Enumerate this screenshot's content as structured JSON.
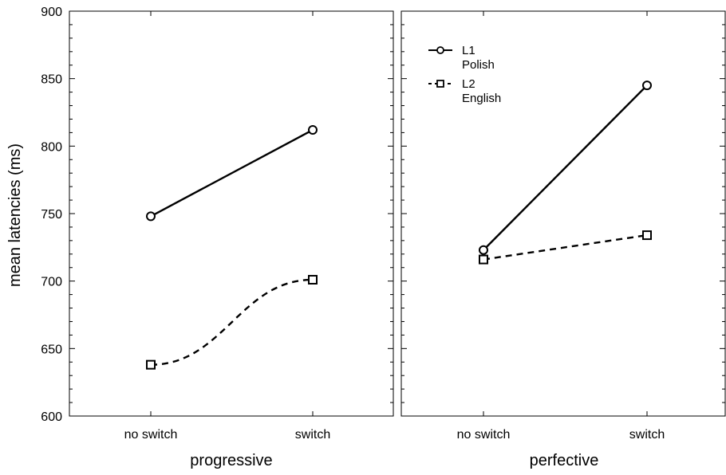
{
  "chart_data": {
    "type": "line",
    "ylabel": "mean latencies (ms)",
    "ylim": [
      600,
      900
    ],
    "yticks": [
      "600",
      "650",
      "700",
      "750",
      "800",
      "850",
      "900"
    ],
    "grid": false,
    "legend_placement": "top-left of right panel",
    "legend": [
      {
        "id": "l1",
        "line1": "L1",
        "line2": "Polish",
        "marker": "circle",
        "dash": "solid"
      },
      {
        "id": "l2",
        "line1": "L2",
        "line2": "English",
        "marker": "square",
        "dash": "dashed"
      }
    ],
    "panels": [
      {
        "xlabel": "progressive",
        "categories": [
          "no switch",
          "switch"
        ],
        "series": [
          {
            "name": "L1 Polish",
            "values": [
              748,
              812
            ]
          },
          {
            "name": "L2 English",
            "values": [
              638,
              701
            ]
          }
        ]
      },
      {
        "xlabel": "perfective",
        "categories": [
          "no switch",
          "switch"
        ],
        "series": [
          {
            "name": "L1 Polish",
            "values": [
              723,
              845
            ]
          },
          {
            "name": "L2 English",
            "values": [
              716,
              734
            ]
          }
        ]
      }
    ]
  }
}
